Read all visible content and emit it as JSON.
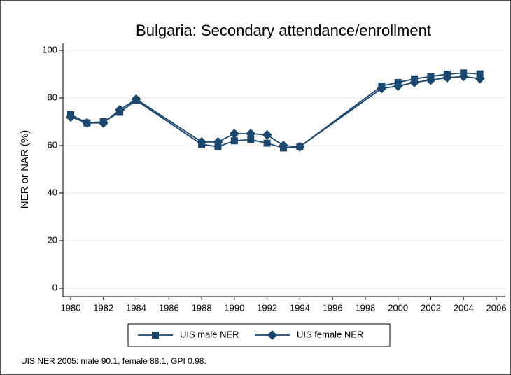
{
  "chart_data": {
    "type": "line",
    "title": "Bulgaria: Secondary attendance/enrollment",
    "ylabel": "NER or NAR (%)",
    "note": "UIS NER 2005: male 90.1, female 88.1, GPI 0.98.",
    "x": [
      1980,
      1981,
      1982,
      1983,
      1984,
      1988,
      1989,
      1990,
      1991,
      1992,
      1993,
      1994,
      1999,
      2000,
      2001,
      2002,
      2003,
      2004,
      2005
    ],
    "series": [
      {
        "name": "UIS male NER",
        "color": "#1a476f",
        "marker": "square",
        "values": [
          73,
          69.5,
          70,
          74,
          79,
          60.5,
          59.5,
          62,
          62.5,
          61,
          59,
          59.5,
          85,
          86.5,
          88,
          89,
          90,
          90.5,
          90.1
        ]
      },
      {
        "name": "UIS female NER",
        "color": "#1a476f",
        "marker": "diamond",
        "values": [
          72,
          69.5,
          69.5,
          75,
          79.5,
          61.5,
          61.5,
          65,
          65,
          64.5,
          60,
          59.5,
          84,
          85,
          86.5,
          87.5,
          88.5,
          89,
          88.1
        ]
      }
    ],
    "xlim": [
      1980,
      2006
    ],
    "xticks": [
      1980,
      1982,
      1984,
      1986,
      1988,
      1990,
      1992,
      1994,
      1996,
      1998,
      2000,
      2002,
      2004,
      2006
    ],
    "ylim": [
      0,
      100
    ],
    "yticks": [
      0,
      20,
      40,
      60,
      80,
      100
    ],
    "grid": true,
    "legend": "bottom"
  }
}
